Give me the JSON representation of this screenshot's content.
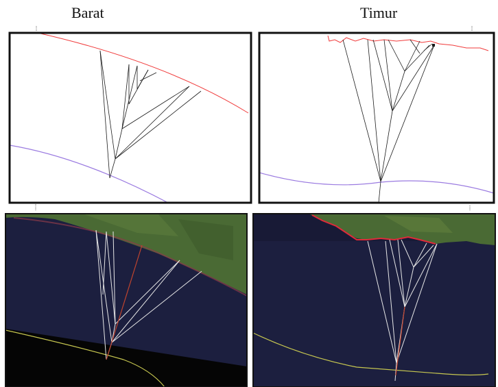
{
  "labels": {
    "west": "Barat",
    "east": "Timur"
  },
  "colors": {
    "frame": "#111111",
    "coastline": "#f03a3a",
    "baseline": "#9a7ae0",
    "transect_plot": "#1a1a1a",
    "sea": "#1c1f3f",
    "land": "#4a6a34",
    "imagery_transect": "#e8e8e8",
    "imagery_center_line": "#c0442e",
    "imagery_baseline": "#c8c850"
  }
}
